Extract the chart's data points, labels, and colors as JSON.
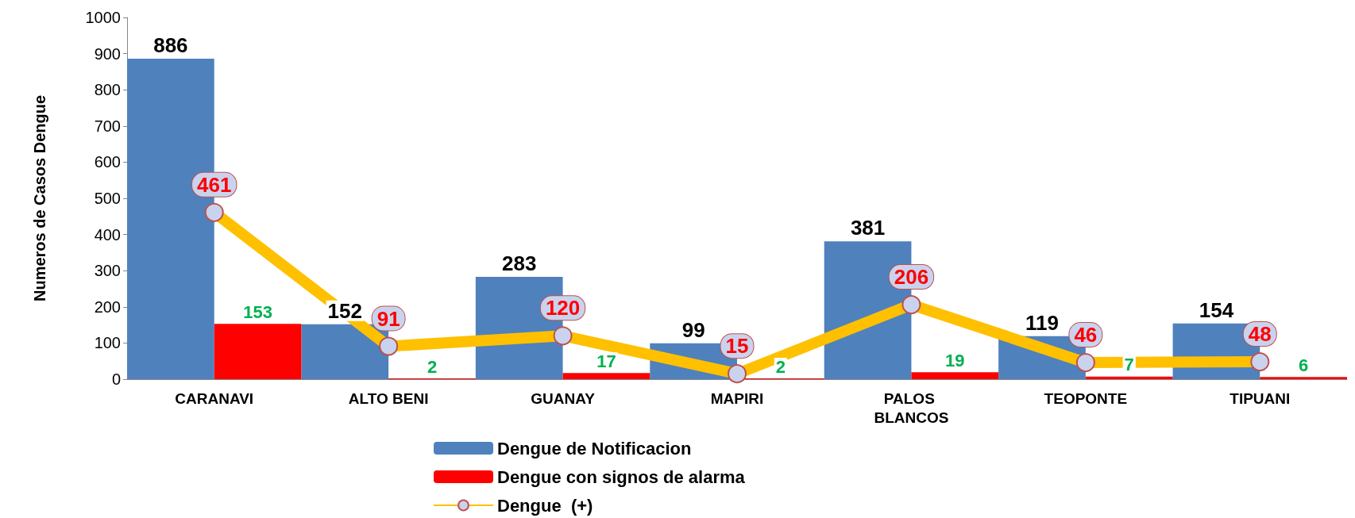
{
  "chart_data": {
    "type": "bar",
    "ylabel": "Numeros de Casos Dengue",
    "categories": [
      "CARANAVI",
      "ALTO BENI",
      "GUANAY",
      "MAPIRI",
      "PALOS BLANCOS",
      "TEOPONTE",
      "TIPUANI"
    ],
    "series": [
      {
        "name": "Dengue de Notificacion",
        "color": "#4f81bd",
        "values": [
          886,
          152,
          283,
          99,
          381,
          119,
          154
        ]
      },
      {
        "name": "Dengue con signos de alarma",
        "color": "#ff0000",
        "values": [
          153,
          2,
          17,
          2,
          19,
          7,
          6
        ]
      },
      {
        "name": "Dengue  (+)",
        "type": "line",
        "color": "#ffc000",
        "values": [
          461,
          91,
          120,
          15,
          206,
          46,
          48
        ]
      }
    ],
    "ylim": [
      0,
      1000
    ],
    "yticks": [
      0,
      100,
      200,
      300,
      400,
      500,
      600,
      700,
      800,
      900,
      1000
    ],
    "grid": false,
    "legend": "bottom",
    "marker": "circle",
    "data_labels": true
  }
}
